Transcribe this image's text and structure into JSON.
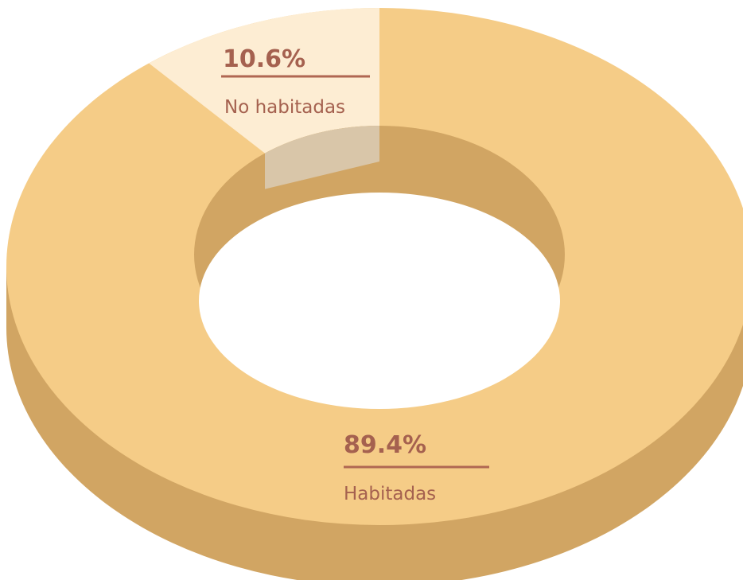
{
  "chart_data": {
    "type": "pie",
    "variant": "3d-donut",
    "title": "",
    "slices": [
      {
        "label": "Habitadas",
        "value": 89.4,
        "display": "89.4%"
      },
      {
        "label": "No habitadas",
        "value": 10.6,
        "display": "10.6%"
      }
    ]
  },
  "colors": {
    "habitadas_top": "#f5cc87",
    "habitadas_side": "#d1a563",
    "no_habitadas_top": "#fdedd3",
    "no_habitadas_side": "#d9c6a9",
    "label_text": "#a5614f",
    "label_rule": "#b06752"
  }
}
